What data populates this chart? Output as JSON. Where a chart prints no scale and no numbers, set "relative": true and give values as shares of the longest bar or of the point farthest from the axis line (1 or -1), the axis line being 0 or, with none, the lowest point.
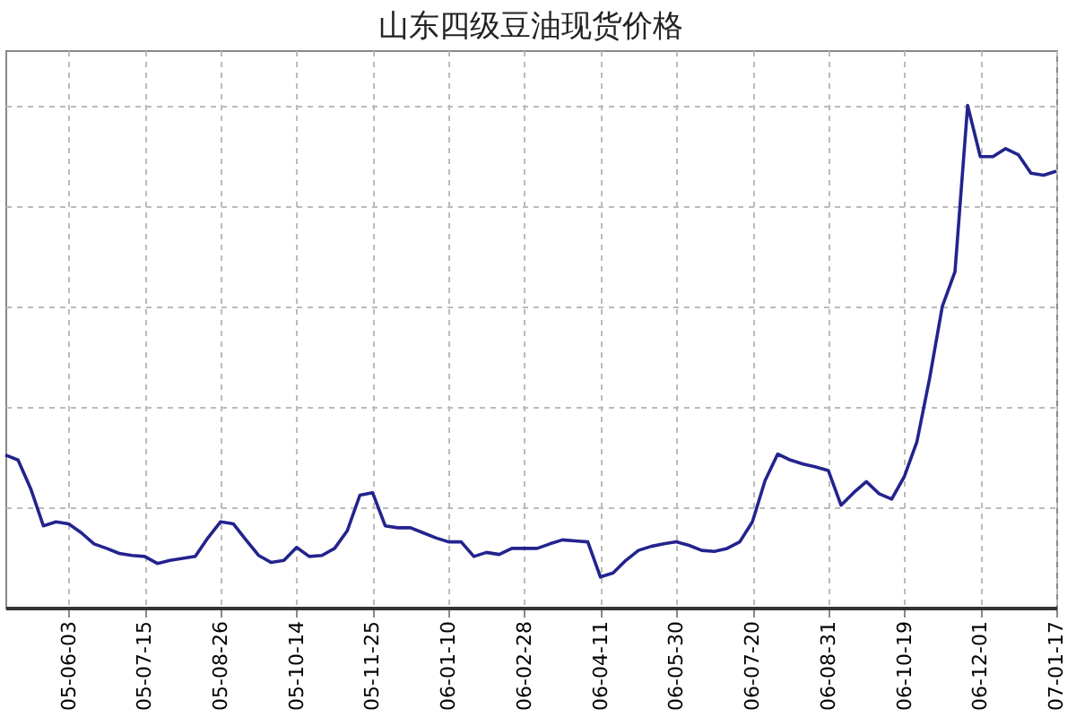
{
  "chart_data": {
    "type": "line",
    "title": "山东四级豆油现货价格",
    "relative": true,
    "grid": true,
    "marker": "none",
    "line_style": "solid",
    "categories": [
      null,
      null,
      null,
      null,
      null,
      "05-06-03",
      null,
      null,
      null,
      null,
      null,
      "05-07-15",
      null,
      null,
      null,
      null,
      null,
      "05-08-26",
      null,
      null,
      null,
      null,
      null,
      "05-10-14",
      null,
      null,
      null,
      null,
      null,
      "05-11-25",
      null,
      null,
      null,
      null,
      null,
      "06-01-10",
      null,
      null,
      null,
      null,
      null,
      "06-02-28",
      null,
      null,
      null,
      null,
      null,
      "06-04-11",
      null,
      null,
      null,
      null,
      null,
      "06-05-30",
      null,
      null,
      null,
      null,
      null,
      "06-07-20",
      null,
      null,
      null,
      null,
      null,
      "06-08-31",
      null,
      null,
      null,
      null,
      null,
      "06-10-19",
      null,
      null,
      null,
      null,
      null,
      "06-12-01",
      null,
      null,
      null,
      null,
      null,
      "07-01-17"
    ],
    "series": [
      {
        "color": "#23238e",
        "values": [
          0.304,
          0.294,
          0.237,
          0.163,
          0.171,
          0.167,
          0.149,
          0.127,
          0.118,
          0.108,
          0.104,
          0.102,
          0.088,
          0.094,
          0.098,
          0.102,
          0.139,
          0.171,
          0.167,
          0.135,
          0.104,
          0.09,
          0.094,
          0.12,
          0.102,
          0.104,
          0.118,
          0.153,
          0.224,
          0.229,
          0.163,
          0.159,
          0.159,
          0.149,
          0.139,
          0.131,
          0.131,
          0.102,
          0.11,
          0.106,
          0.118,
          0.118,
          0.118,
          0.127,
          0.135,
          0.133,
          0.131,
          0.061,
          0.069,
          0.094,
          0.114,
          0.122,
          0.127,
          0.131,
          0.124,
          0.114,
          0.112,
          0.118,
          0.131,
          0.171,
          0.253,
          0.306,
          0.294,
          0.286,
          0.28,
          0.273,
          0.204,
          0.229,
          0.251,
          0.227,
          0.216,
          0.261,
          0.331,
          0.457,
          0.6,
          0.669,
          1.0,
          0.898,
          0.898,
          0.914,
          0.902,
          0.865,
          0.861,
          0.869
        ]
      }
    ]
  }
}
